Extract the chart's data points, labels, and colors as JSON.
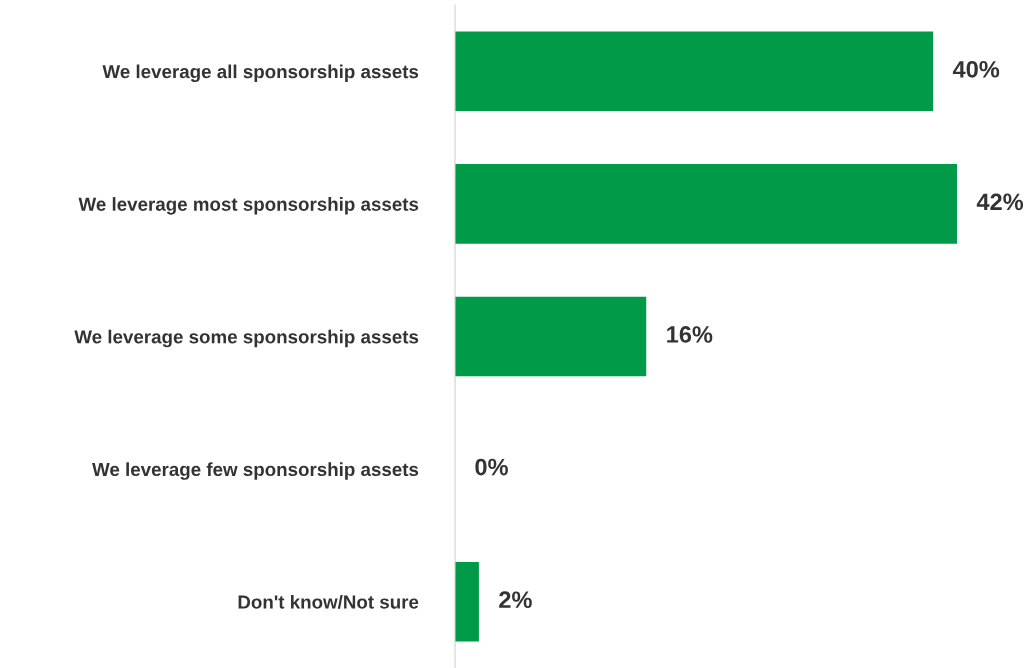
{
  "chart_data": {
    "type": "bar",
    "orientation": "horizontal",
    "categories": [
      "We leverage all sponsorship assets",
      "We leverage most sponsorship assets",
      "We leverage some sponsorship assets",
      "We leverage few sponsorship assets",
      "Don't know/Not sure"
    ],
    "values": [
      40,
      42,
      16,
      0,
      2
    ],
    "value_labels": [
      "40%",
      "42%",
      "16%",
      "0%",
      "2%"
    ],
    "color": "#009a49",
    "tick_labels": "y",
    "grid": false,
    "legend": false
  }
}
